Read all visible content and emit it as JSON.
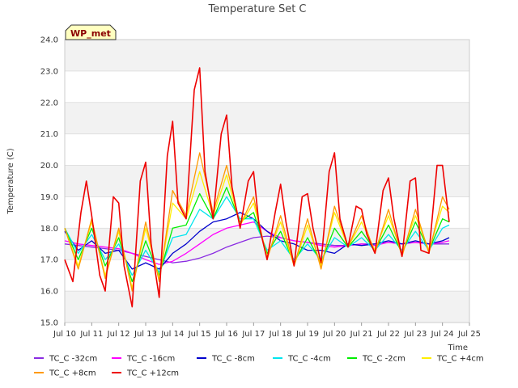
{
  "chart_data": {
    "type": "line",
    "title": "Temperature Set C",
    "xlabel": "Time",
    "ylabel": "Temperature (C)",
    "xlim": [
      10,
      25
    ],
    "ylim": [
      15.0,
      24.0
    ],
    "x_ticks": [
      10,
      11,
      12,
      13,
      14,
      15,
      16,
      17,
      18,
      19,
      20,
      21,
      22,
      23,
      24,
      25
    ],
    "x_tick_labels": [
      "Jul 10",
      "Jul 11",
      "Jul 12",
      "Jul 13",
      "Jul 14",
      "Jul 15",
      "Jul 16",
      "Jul 17",
      "Jul 18",
      "Jul 19",
      "Jul 20",
      "Jul 21",
      "Jul 22",
      "Jul 23",
      "Jul 24",
      "Jul 25"
    ],
    "y_ticks": [
      15.0,
      16.0,
      17.0,
      18.0,
      19.0,
      20.0,
      21.0,
      22.0,
      23.0,
      24.0
    ],
    "y_tick_labels": [
      "15.0",
      "16.0",
      "17.0",
      "18.0",
      "19.0",
      "20.0",
      "21.0",
      "22.0",
      "23.0",
      "24.0"
    ],
    "grid": true,
    "background_bands": true,
    "legend_position": "bottom",
    "annotation": {
      "text": "WP_met",
      "text_color": "#8b0000",
      "fill": "#ffffc0"
    },
    "series": [
      {
        "name": "TC_C -32cm",
        "color": "#8a2be2",
        "x": [
          10.0,
          10.5,
          11.0,
          11.5,
          12.0,
          12.5,
          13.0,
          13.5,
          14.0,
          14.5,
          15.0,
          15.5,
          16.0,
          16.5,
          17.0,
          17.5,
          18.0,
          18.5,
          19.0,
          19.5,
          20.0,
          20.5,
          21.0,
          21.5,
          22.0,
          22.5,
          23.0,
          23.5,
          24.0,
          24.25
        ],
        "y": [
          17.5,
          17.45,
          17.4,
          17.35,
          17.3,
          17.2,
          17.1,
          17.0,
          16.9,
          16.95,
          17.05,
          17.2,
          17.4,
          17.55,
          17.7,
          17.75,
          17.7,
          17.6,
          17.55,
          17.5,
          17.45,
          17.45,
          17.5,
          17.5,
          17.55,
          17.5,
          17.55,
          17.5,
          17.5,
          17.5
        ]
      },
      {
        "name": "TC_C -16cm",
        "color": "#ff00ff",
        "x": [
          10.0,
          10.5,
          11.0,
          11.5,
          12.0,
          12.5,
          13.0,
          13.5,
          14.0,
          14.5,
          15.0,
          15.5,
          16.0,
          16.5,
          17.0,
          17.5,
          18.0,
          18.5,
          19.0,
          19.5,
          20.0,
          20.5,
          21.0,
          21.5,
          22.0,
          22.5,
          23.0,
          23.5,
          24.0,
          24.25
        ],
        "y": [
          17.6,
          17.5,
          17.45,
          17.4,
          17.35,
          17.2,
          17.0,
          16.85,
          16.95,
          17.2,
          17.5,
          17.8,
          18.0,
          18.1,
          18.2,
          17.9,
          17.7,
          17.6,
          17.55,
          17.45,
          17.4,
          17.45,
          17.5,
          17.45,
          17.55,
          17.5,
          17.55,
          17.5,
          17.55,
          17.6
        ]
      },
      {
        "name": "TC_C -8cm",
        "color": "#0000cd",
        "x": [
          10.0,
          10.5,
          11.0,
          11.5,
          12.0,
          12.5,
          13.0,
          13.5,
          14.0,
          14.5,
          15.0,
          15.5,
          16.0,
          16.5,
          17.0,
          17.5,
          18.0,
          18.5,
          19.0,
          19.5,
          20.0,
          20.5,
          21.0,
          21.5,
          22.0,
          22.5,
          23.0,
          23.5,
          24.0,
          24.25
        ],
        "y": [
          17.9,
          17.3,
          17.6,
          17.2,
          17.3,
          16.7,
          16.9,
          16.7,
          17.2,
          17.5,
          17.9,
          18.2,
          18.3,
          18.5,
          18.3,
          17.9,
          17.6,
          17.5,
          17.3,
          17.3,
          17.2,
          17.5,
          17.45,
          17.5,
          17.6,
          17.5,
          17.6,
          17.5,
          17.6,
          17.7
        ]
      },
      {
        "name": "TC_C -4cm",
        "color": "#00e5ee",
        "x": [
          10.0,
          10.5,
          11.0,
          11.5,
          12.0,
          12.5,
          13.0,
          13.5,
          14.0,
          14.5,
          15.0,
          15.5,
          16.0,
          16.5,
          17.0,
          17.5,
          18.0,
          18.5,
          19.0,
          19.5,
          20.0,
          20.5,
          21.0,
          21.5,
          22.0,
          22.5,
          23.0,
          23.5,
          24.0,
          24.25
        ],
        "y": [
          18.0,
          17.2,
          17.8,
          17.0,
          17.5,
          16.5,
          17.3,
          16.6,
          17.7,
          17.8,
          18.6,
          18.3,
          19.0,
          18.3,
          18.3,
          17.3,
          17.6,
          17.0,
          17.5,
          17.0,
          17.7,
          17.4,
          17.7,
          17.3,
          17.8,
          17.3,
          17.9,
          17.3,
          18.0,
          18.1
        ]
      },
      {
        "name": "TC_C -2cm",
        "color": "#00ee00",
        "x": [
          10.0,
          10.5,
          11.0,
          11.5,
          12.0,
          12.5,
          13.0,
          13.5,
          14.0,
          14.5,
          15.0,
          15.5,
          16.0,
          16.5,
          17.0,
          17.5,
          18.0,
          18.5,
          19.0,
          19.5,
          20.0,
          20.5,
          21.0,
          21.5,
          22.0,
          22.5,
          23.0,
          23.5,
          24.0,
          24.25
        ],
        "y": [
          18.0,
          17.0,
          18.0,
          16.8,
          17.7,
          16.3,
          17.6,
          16.5,
          18.0,
          18.1,
          19.1,
          18.3,
          19.3,
          18.2,
          18.5,
          17.2,
          17.9,
          16.9,
          17.7,
          16.9,
          18.0,
          17.4,
          17.9,
          17.3,
          18.1,
          17.2,
          18.2,
          17.3,
          18.3,
          18.2
        ]
      },
      {
        "name": "TC_C +4cm",
        "color": "#ffee00",
        "x": [
          10.0,
          10.5,
          11.0,
          11.5,
          12.0,
          12.5,
          13.0,
          13.5,
          14.0,
          14.5,
          15.0,
          15.5,
          16.0,
          16.5,
          17.0,
          17.5,
          18.0,
          18.5,
          19.0,
          19.5,
          20.0,
          20.5,
          21.0,
          21.5,
          22.0,
          22.5,
          23.0,
          23.5,
          24.0,
          24.25
        ],
        "y": [
          18.0,
          16.8,
          18.2,
          16.5,
          17.9,
          16.1,
          18.0,
          16.4,
          18.8,
          18.3,
          19.8,
          18.4,
          19.7,
          18.1,
          18.8,
          17.1,
          18.2,
          16.8,
          18.1,
          16.8,
          18.5,
          17.4,
          18.2,
          17.3,
          18.4,
          17.2,
          18.4,
          17.3,
          18.7,
          18.5
        ]
      },
      {
        "name": "TC_C +8cm",
        "color": "#ff9900",
        "x": [
          10.0,
          10.5,
          11.0,
          11.5,
          12.0,
          12.5,
          13.0,
          13.5,
          14.0,
          14.5,
          15.0,
          15.5,
          16.0,
          16.5,
          17.0,
          17.5,
          18.0,
          18.5,
          19.0,
          19.5,
          20.0,
          20.5,
          21.0,
          21.5,
          22.0,
          22.5,
          23.0,
          23.5,
          24.0,
          24.25
        ],
        "y": [
          18.0,
          16.7,
          18.3,
          16.4,
          18.0,
          16.0,
          18.2,
          16.3,
          19.2,
          18.4,
          20.4,
          18.5,
          20.0,
          18.1,
          19.0,
          17.0,
          18.4,
          16.8,
          18.3,
          16.7,
          18.7,
          17.4,
          18.4,
          17.2,
          18.6,
          17.1,
          18.6,
          17.2,
          19.0,
          18.6
        ]
      },
      {
        "name": "TC_C +12cm",
        "color": "#ee0000",
        "x": [
          10.0,
          10.3,
          10.6,
          10.8,
          11.0,
          11.3,
          11.5,
          11.8,
          12.0,
          12.2,
          12.5,
          12.8,
          13.0,
          13.2,
          13.5,
          13.8,
          14.0,
          14.2,
          14.5,
          14.8,
          15.0,
          15.2,
          15.5,
          15.8,
          16.0,
          16.2,
          16.5,
          16.8,
          17.0,
          17.2,
          17.5,
          17.8,
          18.0,
          18.2,
          18.5,
          18.8,
          19.0,
          19.2,
          19.5,
          19.8,
          20.0,
          20.2,
          20.5,
          20.8,
          21.0,
          21.2,
          21.5,
          21.8,
          22.0,
          22.2,
          22.5,
          22.8,
          23.0,
          23.2,
          23.5,
          23.8,
          24.0,
          24.25
        ],
        "y": [
          17.0,
          16.3,
          18.5,
          19.5,
          18.4,
          16.5,
          16.0,
          19.0,
          18.8,
          16.8,
          15.5,
          19.5,
          20.1,
          17.5,
          15.8,
          20.3,
          21.4,
          18.8,
          18.3,
          22.4,
          23.1,
          19.8,
          18.3,
          21.0,
          21.6,
          19.3,
          18.0,
          19.5,
          19.8,
          18.1,
          17.0,
          18.5,
          19.4,
          18.2,
          16.8,
          19.0,
          19.1,
          18.0,
          16.9,
          19.8,
          20.4,
          18.3,
          17.4,
          18.7,
          18.6,
          17.8,
          17.2,
          19.2,
          19.6,
          18.3,
          17.1,
          19.5,
          19.6,
          17.3,
          17.2,
          20.0,
          20.0,
          18.2
        ]
      }
    ]
  }
}
